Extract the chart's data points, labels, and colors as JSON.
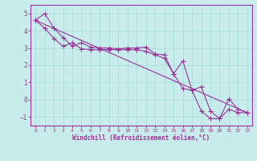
{
  "title": "",
  "xlabel": "Windchill (Refroidissement éolien,°C)",
  "ylabel": "",
  "bg_color": "#c8ecec",
  "line_color": "#993399",
  "grid_color": "#aadddd",
  "axis_color": "#993399",
  "xlim": [
    -0.5,
    23.5
  ],
  "ylim": [
    -1.5,
    5.5
  ],
  "yticks": [
    -1,
    0,
    1,
    2,
    3,
    4,
    5
  ],
  "xticks": [
    0,
    1,
    2,
    3,
    4,
    5,
    6,
    7,
    8,
    9,
    10,
    11,
    12,
    13,
    14,
    15,
    16,
    17,
    18,
    19,
    20,
    21,
    22,
    23
  ],
  "line1_x": [
    0,
    1,
    2,
    3,
    4,
    5,
    6,
    7,
    8,
    9,
    10,
    11,
    12,
    13,
    14,
    15,
    16,
    17,
    18,
    19,
    20,
    21,
    22,
    23
  ],
  "line1_y": [
    4.6,
    5.0,
    4.15,
    3.6,
    3.1,
    3.3,
    3.05,
    3.0,
    3.0,
    2.95,
    3.0,
    3.0,
    3.05,
    2.65,
    2.6,
    1.5,
    2.25,
    0.55,
    0.75,
    -0.65,
    -1.1,
    0.05,
    -0.55,
    -0.75
  ],
  "line2_x": [
    0,
    1,
    2,
    3,
    4,
    5,
    6,
    7,
    8,
    9,
    10,
    11,
    12,
    13,
    14,
    15,
    16,
    17,
    18,
    19,
    20,
    21,
    22,
    23
  ],
  "line2_y": [
    4.6,
    4.15,
    3.55,
    3.1,
    3.3,
    2.95,
    2.9,
    2.9,
    2.9,
    2.9,
    2.9,
    2.9,
    2.8,
    2.6,
    2.4,
    1.5,
    0.65,
    0.55,
    -0.65,
    -1.1,
    -1.1,
    -0.55,
    -0.75,
    -0.75
  ],
  "line3_x": [
    0,
    23
  ],
  "line3_y": [
    4.6,
    -0.75
  ],
  "marker": "+",
  "markersize": 4,
  "markeredgewidth": 0.8,
  "linewidth": 0.8
}
